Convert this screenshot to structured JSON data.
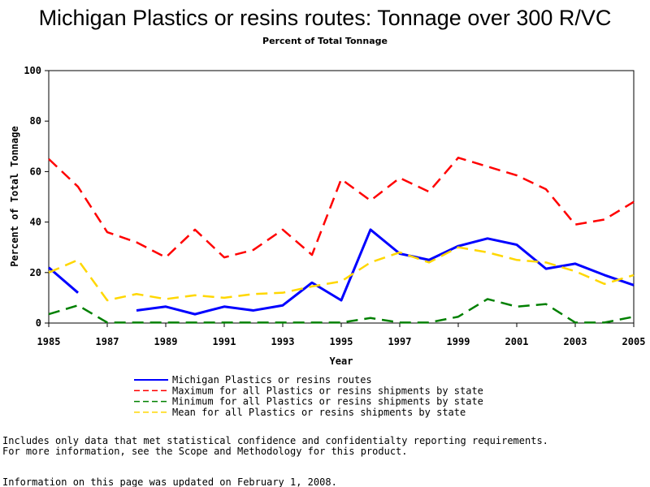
{
  "chart_data": {
    "type": "line",
    "title": "Michigan Plastics or resins routes: Tonnage over 300 R/VC",
    "subtitle": "Percent of Total Tonnage",
    "xlabel": "Year",
    "ylabel": "Percent of Total Tonnage",
    "xlim": [
      1985,
      2005
    ],
    "ylim": [
      0,
      100
    ],
    "x_ticks": [
      "1985",
      "1987",
      "1989",
      "1991",
      "1993",
      "1995",
      "1997",
      "1999",
      "2001",
      "2003",
      "2005"
    ],
    "y_ticks": [
      "0",
      "20",
      "40",
      "60",
      "80",
      "100"
    ],
    "x": [
      1985,
      1986,
      1987,
      1988,
      1989,
      1990,
      1991,
      1992,
      1993,
      1994,
      1995,
      1996,
      1997,
      1998,
      1999,
      2000,
      2001,
      2002,
      2003,
      2004,
      2005
    ],
    "series": [
      {
        "name": "Michigan Plastics or resins routes",
        "color": "#0000ff",
        "dash": "solid",
        "values": [
          22,
          12,
          null,
          5,
          6.5,
          3.5,
          6.5,
          5,
          7,
          16,
          9,
          37,
          27.5,
          25,
          30.5,
          33.5,
          31,
          21.5,
          23.5,
          19,
          15
        ]
      },
      {
        "name": "Maximum for all Plastics or resins shipments by state",
        "color": "#ff0000",
        "dash": "long",
        "values": [
          65,
          54,
          36,
          32,
          26,
          37,
          26,
          29,
          37,
          27,
          57,
          48.5,
          57.5,
          52,
          65.5,
          62,
          58.5,
          53,
          39,
          41,
          48
        ]
      },
      {
        "name": "Minimum for all Plastics or resins shipments by state",
        "color": "#008000",
        "dash": "long",
        "values": [
          3.5,
          7,
          0.2,
          0.2,
          0.2,
          0.2,
          0.2,
          0.2,
          0.2,
          0.2,
          0.2,
          2,
          0.2,
          0.2,
          2.5,
          9.5,
          6.5,
          7.5,
          0.2,
          0.2,
          2.5
        ]
      },
      {
        "name": "Mean for all Plastics or resins shipments by state",
        "color": "#ffd700",
        "dash": "long",
        "values": [
          20,
          25,
          9,
          11.5,
          9.5,
          11,
          10,
          11.5,
          12,
          14.5,
          16.5,
          24,
          28,
          24,
          30,
          28,
          25,
          24,
          20.5,
          15.5,
          19
        ]
      }
    ],
    "grid": false,
    "legend_position": "bottom"
  },
  "footnotes": [
    "Includes only data that met statistical confidence and confidentialty reporting requirements.",
    "For more information, see the Scope and Methodology for this product."
  ],
  "updated_note": "Information on this page was updated on February 1, 2008."
}
